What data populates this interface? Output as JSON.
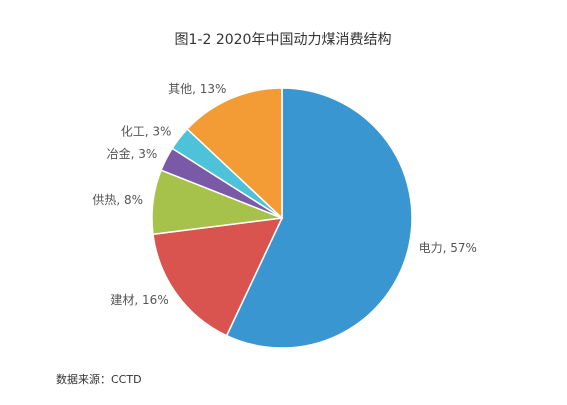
{
  "chart_data": {
    "type": "pie",
    "title": "图1-2 2020年中国动力煤消费结构",
    "values": [
      57,
      16,
      8,
      3,
      3,
      13
    ],
    "value_labels": [
      "电力, 57%",
      "建材, 16%",
      "供热, 8%",
      "冶金, 3%",
      "化工, 3%",
      "其他, 13%"
    ],
    "colors": [
      "#3a96d0",
      "#d9534f",
      "#a6c24a",
      "#7a5aa6",
      "#4ec2d8",
      "#f39c36"
    ],
    "source": "数据来源：CCTD"
  }
}
